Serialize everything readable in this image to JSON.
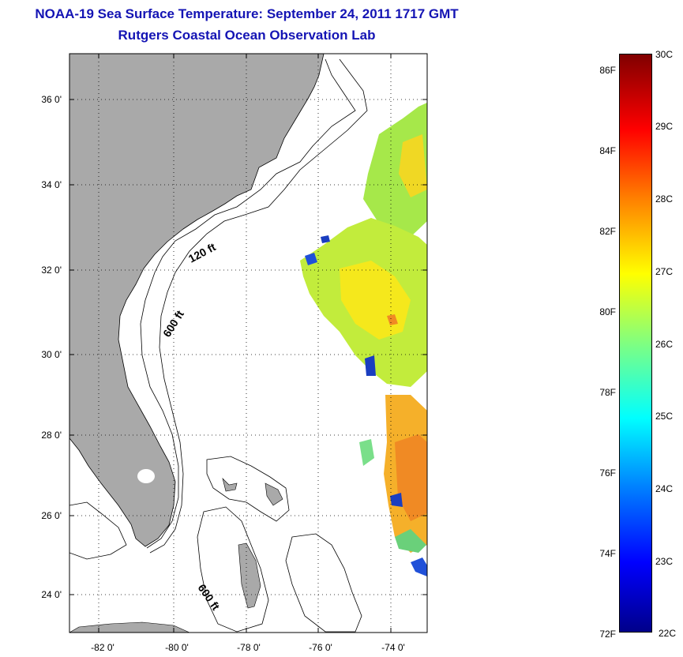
{
  "header": {
    "title": "NOAA-19 Sea Surface Temperature:  September 24, 2011 1717 GMT",
    "subtitle": "Rutgers Coastal Ocean Observation Lab"
  },
  "map": {
    "lat_labels": [
      "36 0'",
      "34 0'",
      "32 0'",
      "30 0'",
      "28 0'",
      "26 0'",
      "24 0'"
    ],
    "lon_labels": [
      "-82 0'",
      "-80 0'",
      "-78 0'",
      "-76 0'",
      "-74 0'"
    ],
    "contour_labels": [
      "120 ft",
      "600 ft",
      "600 ft"
    ],
    "colors": {
      "land": "#a9a9a9",
      "ocean": "#ffffff",
      "grid": "#000000"
    }
  },
  "colorbar": {
    "fahrenheit": [
      "86F",
      "84F",
      "82F",
      "80F",
      "78F",
      "76F",
      "74F",
      "72F"
    ],
    "celsius": [
      "30C",
      "29C",
      "28C",
      "27C",
      "26C",
      "25C",
      "24C",
      "23C",
      "22C"
    ]
  }
}
